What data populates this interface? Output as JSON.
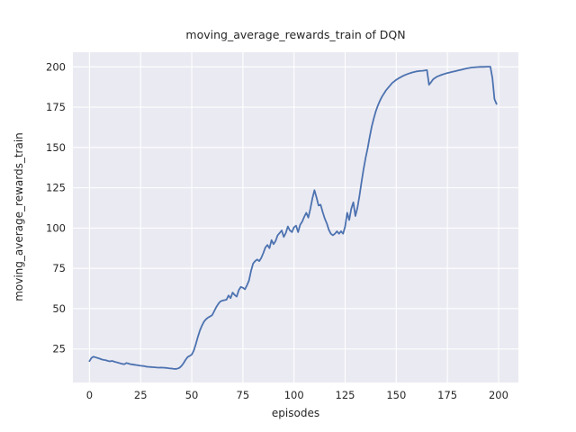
{
  "figure": {
    "title": "moving_average_rewards_train of DQN",
    "xlabel": "episodes",
    "ylabel": "moving_average_rewards_train"
  },
  "style": {
    "panel_bg": "#eaeaf2",
    "grid_color": "#ffffff",
    "line_color": "#4c72b0",
    "text_color": "#262626",
    "figure_bg": "#ffffff"
  },
  "chart_data": {
    "type": "line",
    "title": "moving_average_rewards_train of DQN",
    "xlabel": "episodes",
    "ylabel": "moving_average_rewards_train",
    "legend": null,
    "grid": true,
    "xlim": [
      -8.1,
      209.7
    ],
    "ylim": [
      4.2,
      209.1
    ],
    "xticks": [
      0,
      25,
      50,
      75,
      100,
      125,
      150,
      175,
      200
    ],
    "yticks": [
      25,
      50,
      75,
      100,
      125,
      150,
      175,
      200
    ],
    "series": [
      {
        "name": "DQN moving average rewards (train)",
        "points": [
          [
            0,
            17.5
          ],
          [
            1,
            19.5
          ],
          [
            2,
            20.2
          ],
          [
            3,
            19.8
          ],
          [
            4,
            19.4
          ],
          [
            5,
            19.0
          ],
          [
            6,
            18.5
          ],
          [
            7,
            18.2
          ],
          [
            8,
            18.0
          ],
          [
            9,
            17.6
          ],
          [
            10,
            17.3
          ],
          [
            11,
            17.6
          ],
          [
            12,
            17.2
          ],
          [
            13,
            16.8
          ],
          [
            14,
            16.5
          ],
          [
            15,
            16.1
          ],
          [
            16,
            15.8
          ],
          [
            17,
            15.5
          ],
          [
            18,
            16.3
          ],
          [
            19,
            16.0
          ],
          [
            20,
            15.6
          ],
          [
            21,
            15.4
          ],
          [
            22,
            15.2
          ],
          [
            23,
            15.0
          ],
          [
            24,
            14.8
          ],
          [
            25,
            14.6
          ],
          [
            26,
            14.5
          ],
          [
            27,
            14.3
          ],
          [
            28,
            14.0
          ],
          [
            29,
            13.9
          ],
          [
            30,
            13.8
          ],
          [
            31,
            13.7
          ],
          [
            32,
            13.6
          ],
          [
            33,
            13.5
          ],
          [
            34,
            13.4
          ],
          [
            35,
            13.5
          ],
          [
            36,
            13.4
          ],
          [
            37,
            13.3
          ],
          [
            38,
            13.2
          ],
          [
            39,
            13.0
          ],
          [
            40,
            12.9
          ],
          [
            41,
            12.7
          ],
          [
            42,
            12.6
          ],
          [
            43,
            12.8
          ],
          [
            44,
            13.3
          ],
          [
            45,
            14.5
          ],
          [
            46,
            16.2
          ],
          [
            47,
            18.3
          ],
          [
            48,
            20.0
          ],
          [
            49,
            20.7
          ],
          [
            50,
            21.5
          ],
          [
            51,
            24.0
          ],
          [
            52,
            28.0
          ],
          [
            53,
            32.5
          ],
          [
            54,
            36.5
          ],
          [
            55,
            39.5
          ],
          [
            56,
            42.0
          ],
          [
            57,
            43.5
          ],
          [
            58,
            44.5
          ],
          [
            59,
            45.2
          ],
          [
            60,
            46.0
          ],
          [
            61,
            48.5
          ],
          [
            62,
            51.0
          ],
          [
            63,
            53.0
          ],
          [
            64,
            54.5
          ],
          [
            65,
            55.0
          ],
          [
            66,
            55.3
          ],
          [
            67,
            55.6
          ],
          [
            68,
            58.2
          ],
          [
            69,
            56.5
          ],
          [
            70,
            60.0
          ],
          [
            71,
            58.5
          ],
          [
            72,
            57.5
          ],
          [
            73,
            61.5
          ],
          [
            74,
            63.5
          ],
          [
            75,
            63.0
          ],
          [
            76,
            62.0
          ],
          [
            77,
            64.5
          ],
          [
            78,
            67.5
          ],
          [
            79,
            73.5
          ],
          [
            80,
            78.0
          ],
          [
            81,
            79.5
          ],
          [
            82,
            80.5
          ],
          [
            83,
            79.5
          ],
          [
            84,
            81.5
          ],
          [
            85,
            84.5
          ],
          [
            86,
            88.0
          ],
          [
            87,
            89.5
          ],
          [
            88,
            87.5
          ],
          [
            89,
            92.5
          ],
          [
            90,
            90.0
          ],
          [
            91,
            92.0
          ],
          [
            92,
            95.5
          ],
          [
            93,
            97.0
          ],
          [
            94,
            98.5
          ],
          [
            95,
            94.5
          ],
          [
            96,
            97.0
          ],
          [
            97,
            101.0
          ],
          [
            98,
            98.5
          ],
          [
            99,
            97.5
          ],
          [
            100,
            100.5
          ],
          [
            101,
            101.5
          ],
          [
            102,
            97.5
          ],
          [
            103,
            102.0
          ],
          [
            104,
            104.0
          ],
          [
            105,
            107.0
          ],
          [
            106,
            109.5
          ],
          [
            107,
            106.5
          ],
          [
            108,
            112.0
          ],
          [
            109,
            118.5
          ],
          [
            110,
            123.5
          ],
          [
            111,
            119.0
          ],
          [
            112,
            114.0
          ],
          [
            113,
            114.5
          ],
          [
            114,
            110.0
          ],
          [
            115,
            106.0
          ],
          [
            116,
            103.0
          ],
          [
            117,
            99.0
          ],
          [
            118,
            96.5
          ],
          [
            119,
            95.5
          ],
          [
            120,
            96.5
          ],
          [
            121,
            98.0
          ],
          [
            122,
            96.5
          ],
          [
            123,
            98.0
          ],
          [
            124,
            96.5
          ],
          [
            125,
            101.0
          ],
          [
            126,
            109.5
          ],
          [
            127,
            105.0
          ],
          [
            128,
            112.0
          ],
          [
            129,
            116.0
          ],
          [
            130,
            107.5
          ],
          [
            131,
            112.5
          ],
          [
            132,
            120.0
          ],
          [
            133,
            128.5
          ],
          [
            134,
            136.5
          ],
          [
            135,
            143.5
          ],
          [
            136,
            149.5
          ],
          [
            137,
            156.5
          ],
          [
            138,
            163.0
          ],
          [
            139,
            168.0
          ],
          [
            140,
            172.5
          ],
          [
            141,
            176.0
          ],
          [
            142,
            179.0
          ],
          [
            143,
            181.5
          ],
          [
            144,
            183.5
          ],
          [
            145,
            185.5
          ],
          [
            146,
            187.0
          ],
          [
            147,
            188.5
          ],
          [
            148,
            190.0
          ],
          [
            149,
            191.0
          ],
          [
            150,
            192.0
          ],
          [
            151,
            192.8
          ],
          [
            152,
            193.5
          ],
          [
            153,
            194.2
          ],
          [
            154,
            194.8
          ],
          [
            155,
            195.3
          ],
          [
            156,
            195.8
          ],
          [
            157,
            196.2
          ],
          [
            158,
            196.6
          ],
          [
            159,
            196.9
          ],
          [
            160,
            197.2
          ],
          [
            161,
            197.4
          ],
          [
            162,
            197.5
          ],
          [
            163,
            197.6
          ],
          [
            164,
            197.8
          ],
          [
            165,
            198.0
          ],
          [
            166,
            188.9
          ],
          [
            167,
            190.5
          ],
          [
            168,
            192.3
          ],
          [
            169,
            193.2
          ],
          [
            170,
            194.0
          ],
          [
            171,
            194.5
          ],
          [
            172,
            195.0
          ],
          [
            173,
            195.4
          ],
          [
            174,
            195.8
          ],
          [
            175,
            196.2
          ],
          [
            176,
            196.5
          ],
          [
            177,
            196.8
          ],
          [
            178,
            197.1
          ],
          [
            179,
            197.4
          ],
          [
            180,
            197.7
          ],
          [
            181,
            198.0
          ],
          [
            182,
            198.3
          ],
          [
            183,
            198.6
          ],
          [
            184,
            198.9
          ],
          [
            185,
            199.2
          ],
          [
            186,
            199.4
          ],
          [
            187,
            199.6
          ],
          [
            188,
            199.7
          ],
          [
            189,
            199.8
          ],
          [
            190,
            199.9
          ],
          [
            191,
            200.0
          ],
          [
            192,
            200.0
          ],
          [
            193,
            200.0
          ],
          [
            194,
            200.1
          ],
          [
            195,
            200.1
          ],
          [
            196,
            200.1
          ],
          [
            197,
            193.0
          ],
          [
            198,
            180.0
          ],
          [
            199,
            177.0
          ]
        ]
      }
    ]
  }
}
